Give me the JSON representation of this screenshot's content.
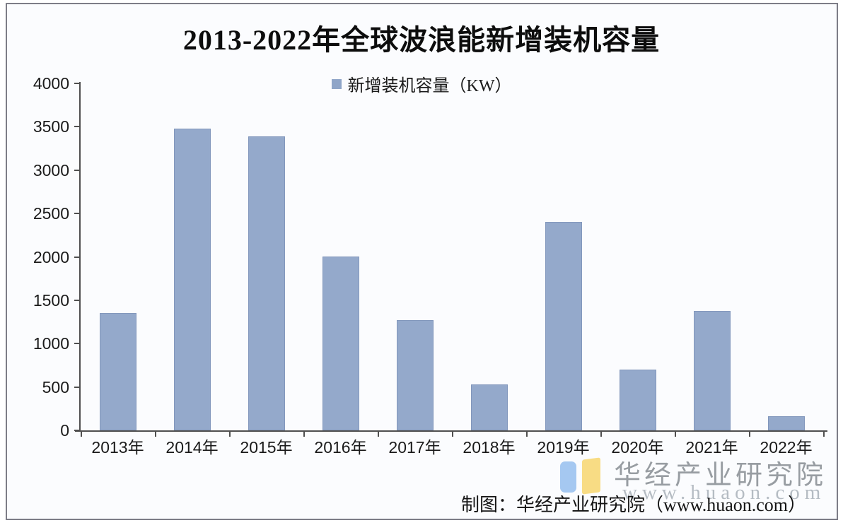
{
  "title": "2013-2022年全球波浪能新增装机容量",
  "legend": {
    "label": "新增装机容量（KW）",
    "swatch_color": "#8fa5c8"
  },
  "chart_data": {
    "type": "bar",
    "title": "2013-2022年全球波浪能新增装机容量",
    "legend": [
      "新增装机容量（KW）"
    ],
    "legend_position": "top-center",
    "categories": [
      "2013年",
      "2014年",
      "2015年",
      "2016年",
      "2017年",
      "2018年",
      "2019年",
      "2020年",
      "2021年",
      "2022年"
    ],
    "values": [
      1350,
      3480,
      3390,
      2000,
      1270,
      530,
      2400,
      700,
      1380,
      160
    ],
    "xlabel": "",
    "ylabel": "",
    "ylim": [
      0,
      4000
    ],
    "ytick_step": 500,
    "ytick_labels": [
      "0",
      "500",
      "1000",
      "1500",
      "2000",
      "2500",
      "3000",
      "3500",
      "4000"
    ],
    "grid": false,
    "bar_color": "#94a9cb",
    "bar_border_color": "#8297bc",
    "axis_color": "#4f4f4f"
  },
  "footer": {
    "caption": "制图：华经产业研究院（www.huaon.com）"
  },
  "watermark": {
    "name": "华经产业研究院",
    "url": "www.huaon.com",
    "logo_blue": "#a5c8f1",
    "logo_yellow": "#f8dc84"
  }
}
